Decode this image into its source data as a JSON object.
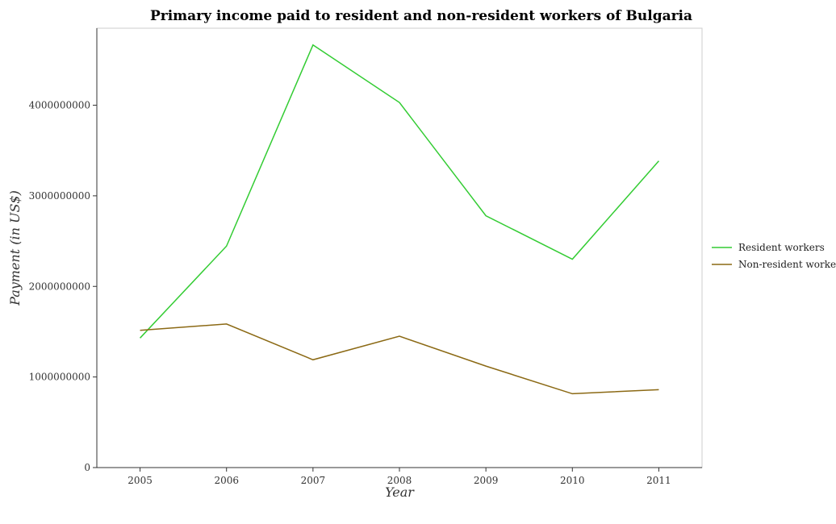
{
  "chart_data": {
    "type": "line",
    "title": "Primary income paid to resident and non-resident workers of Bulgaria",
    "xlabel": "Year",
    "ylabel": "Payment (in US$)",
    "categories": [
      "2005",
      "2006",
      "2007",
      "2008",
      "2009",
      "2010",
      "2011"
    ],
    "ylim": [
      0,
      4850000000
    ],
    "yticks": [
      0,
      1000000000,
      2000000000,
      3000000000,
      4000000000
    ],
    "ytick_labels": [
      "0",
      "1000000000",
      "2000000000",
      "3000000000",
      "4000000000"
    ],
    "grid": false,
    "legend_position": "right",
    "series": [
      {
        "name": "Resident workers",
        "color": "#33cc33",
        "values": [
          1430000000,
          2445000000,
          4665000000,
          4030000000,
          2780000000,
          2300000000,
          3385000000
        ]
      },
      {
        "name": "Non-resident workers",
        "color": "#8b6914",
        "values": [
          1515000000,
          1585000000,
          1190000000,
          1450000000,
          1120000000,
          815000000,
          860000000
        ]
      }
    ]
  }
}
